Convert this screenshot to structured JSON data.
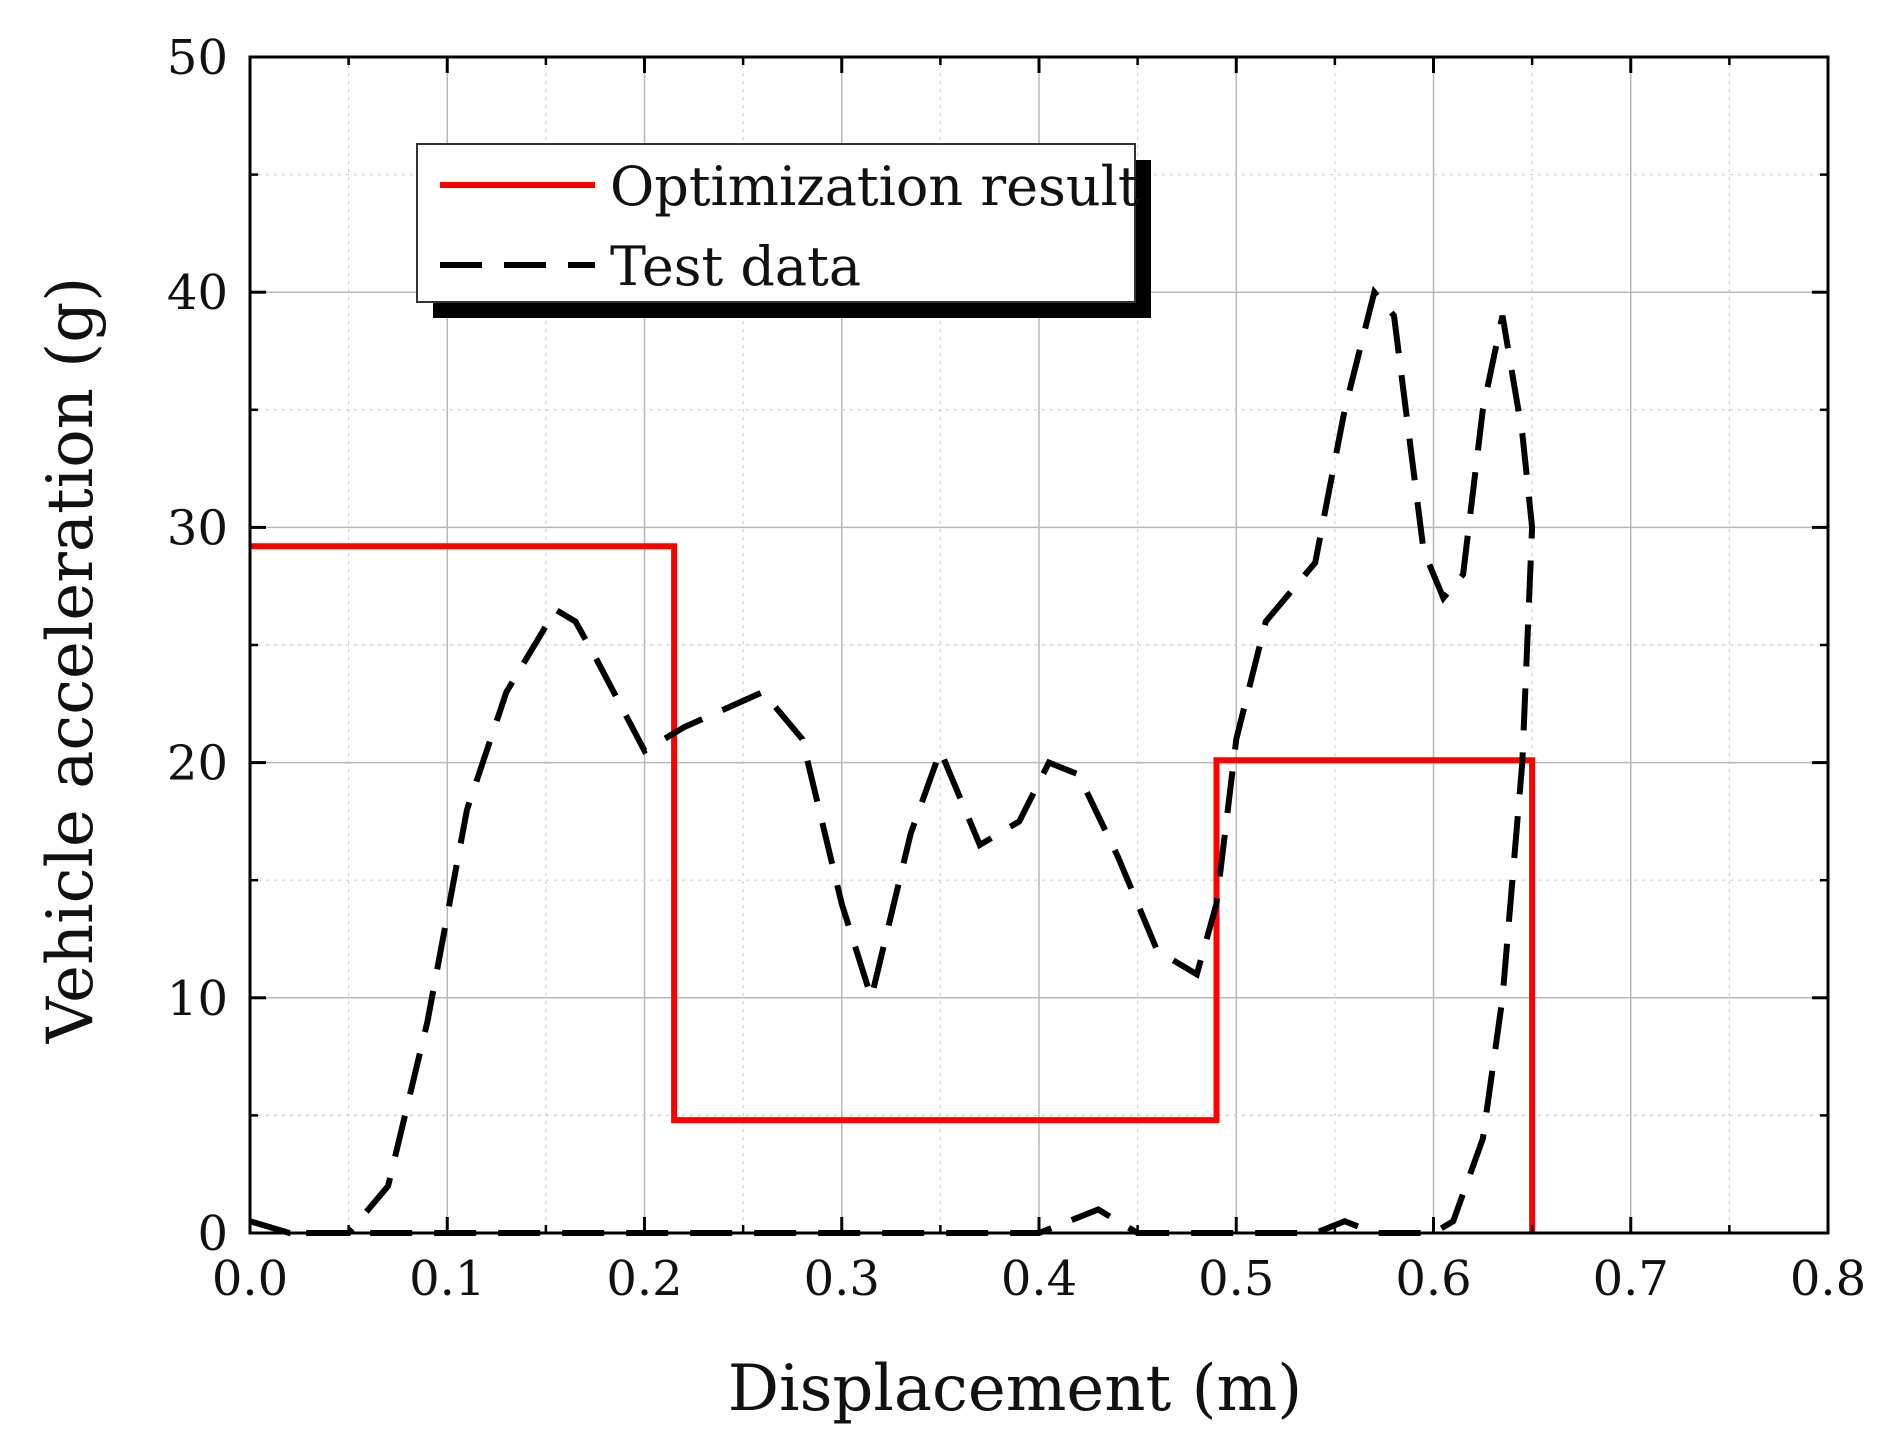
{
  "chart_data": {
    "type": "line",
    "title": "",
    "xlabel": "Displacement (m)",
    "ylabel": "Vehicle acceleration (g)",
    "xlim": [
      0.0,
      0.8
    ],
    "ylim": [
      0,
      50
    ],
    "x_ticks": [
      "0.0",
      "0.1",
      "0.2",
      "0.3",
      "0.4",
      "0.5",
      "0.6",
      "0.7",
      "0.8"
    ],
    "y_ticks": [
      "0",
      "10",
      "20",
      "30",
      "40",
      "50"
    ],
    "grid": true,
    "legend_position": "top-left",
    "series": [
      {
        "name": "Optimization result",
        "style": "solid",
        "color": "#ff0000",
        "x": [
          0.0,
          0.215,
          0.215,
          0.49,
          0.49,
          0.65,
          0.65
        ],
        "y": [
          29.2,
          29.2,
          4.8,
          4.8,
          20.1,
          20.1,
          0
        ]
      },
      {
        "name": "Test data",
        "style": "dashed",
        "color": "#000000",
        "x": [
          0.0,
          0.02,
          0.05,
          0.07,
          0.09,
          0.11,
          0.13,
          0.155,
          0.165,
          0.175,
          0.2,
          0.22,
          0.26,
          0.28,
          0.3,
          0.315,
          0.335,
          0.35,
          0.37,
          0.39,
          0.405,
          0.42,
          0.44,
          0.46,
          0.48,
          0.49,
          0.5,
          0.515,
          0.54,
          0.555,
          0.57,
          0.58,
          0.595,
          0.605,
          0.615,
          0.625,
          0.635,
          0.645,
          0.65,
          0.645,
          0.635,
          0.625,
          0.61,
          0.6,
          0.585,
          0.57,
          0.555,
          0.54,
          0.5,
          0.45,
          0.43,
          0.4,
          0.3,
          0.2,
          0.1,
          0.05,
          0.02,
          0.0
        ],
        "y": [
          0.5,
          0,
          0,
          2,
          9,
          18,
          23,
          26.5,
          26,
          24.5,
          20.5,
          21.5,
          23,
          21,
          14,
          10,
          17,
          20.5,
          16.5,
          17.5,
          20,
          19.5,
          16,
          12,
          11,
          14,
          21,
          26,
          28.5,
          35,
          40,
          39,
          29,
          27,
          28,
          35,
          39,
          34,
          30,
          20,
          10,
          4,
          0.5,
          0,
          0,
          0,
          0.5,
          0,
          0,
          0,
          1,
          0,
          0,
          0,
          0,
          0,
          0,
          0.5
        ]
      }
    ]
  }
}
